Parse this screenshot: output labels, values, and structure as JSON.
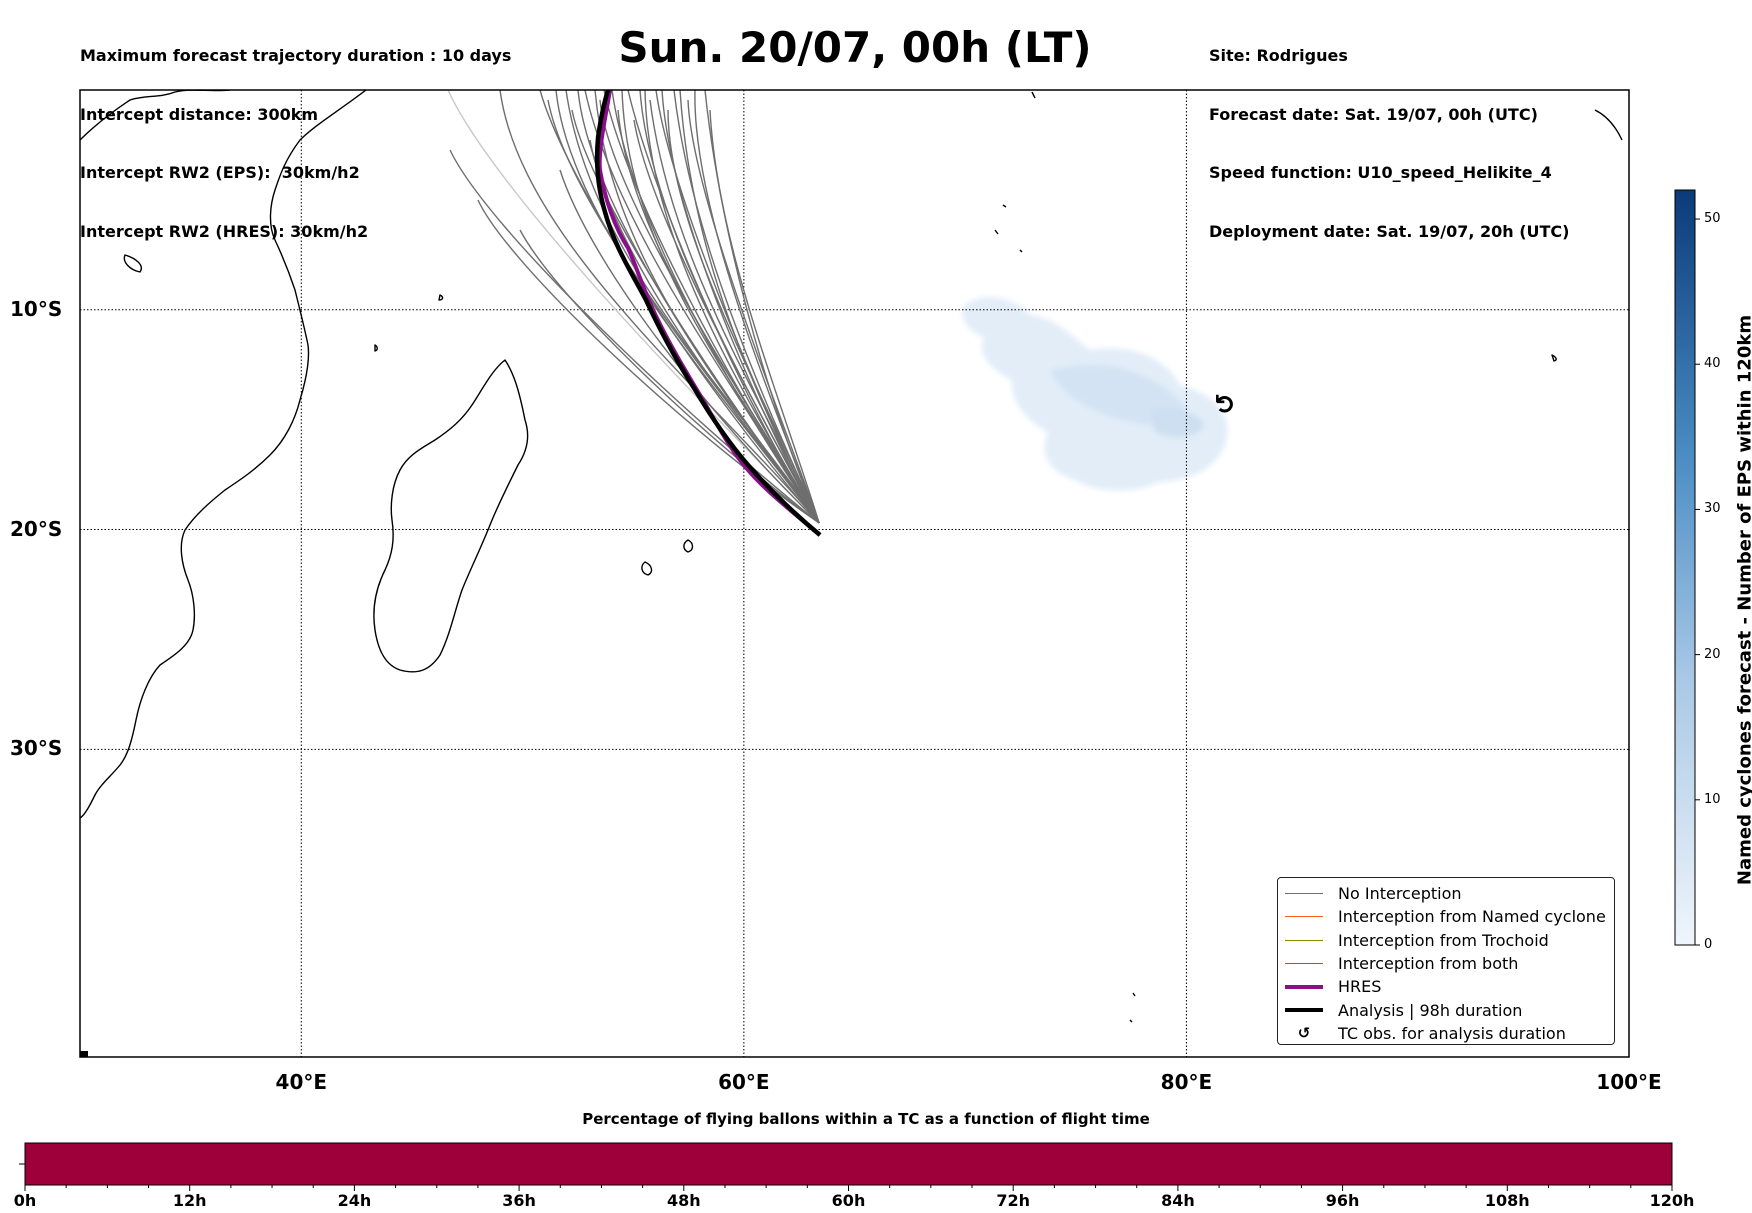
{
  "header": {
    "left_lines": [
      "Maximum forecast trajectory duration : 10 days",
      "Intercept distance: 300km",
      "Intercept RW2 (EPS):  30km/h2",
      "Intercept RW2 (HRES): 30km/h2"
    ],
    "title": "Sun. 20/07, 00h (LT)",
    "right_lines": [
      "Site: Rodrigues",
      "Forecast date: Sat. 19/07, 00h (UTC)",
      "Speed function: U10_speed_Helikite_4",
      "Deployment date: Sat. 19/07, 20h (UTC)"
    ]
  },
  "map": {
    "lon_range": [
      30,
      100
    ],
    "lat_range": [
      -44,
      0
    ],
    "lat_gridlines": [
      {
        "value": -10,
        "label": "10°S"
      },
      {
        "value": -20,
        "label": "20°S"
      },
      {
        "value": -30,
        "label": "30°S"
      }
    ],
    "lon_gridlines": [
      {
        "value": 40,
        "label": "40°E"
      },
      {
        "value": 60,
        "label": "60°E"
      },
      {
        "value": 80,
        "label": "80°E"
      },
      {
        "value": 100,
        "label": "100°E"
      }
    ],
    "launch_site": {
      "lon": 63.4,
      "lat": -19.7
    },
    "tc_observation": {
      "lon": 81.8,
      "lat": -14.3,
      "symbol": "↺"
    },
    "colors": {
      "no_interception": "#6e6e6e",
      "named_cyclone": "#ff5a1f",
      "trochoid": "#8b8b00",
      "both": "#1e9e1e",
      "hres": "#8b0f8b",
      "analysis": "#000000",
      "eps_shading": "#dbe8f6"
    }
  },
  "legend": {
    "items": [
      {
        "key": "no_interception",
        "label": "No Interception"
      },
      {
        "key": "named_cyclone",
        "label": "Interception from Named cyclone"
      },
      {
        "key": "trochoid",
        "label": "Interception from Trochoid"
      },
      {
        "key": "both",
        "label": "Interception from both"
      },
      {
        "key": "hres",
        "label": "HRES"
      },
      {
        "key": "analysis",
        "label": "Analysis | 98h duration"
      },
      {
        "key": "tc_obs",
        "label": "TC obs. for analysis duration"
      }
    ]
  },
  "colorbar_vertical": {
    "title": "Named cyclones forecast - Number of EPS within 120km",
    "ticks": [
      "0",
      "10",
      "20",
      "30",
      "40",
      "50"
    ],
    "range": [
      0,
      52
    ],
    "color_low": "#f0f5fb",
    "color_high": "#0b3a7a"
  },
  "colorbar_horizontal": {
    "title": "Percentage of flying ballons within a TC as a function of flight time",
    "ticks": [
      "0h",
      "12h",
      "24h",
      "36h",
      "48h",
      "60h",
      "72h",
      "84h",
      "96h",
      "108h",
      "120h"
    ],
    "fill_color": "#9e003a"
  }
}
